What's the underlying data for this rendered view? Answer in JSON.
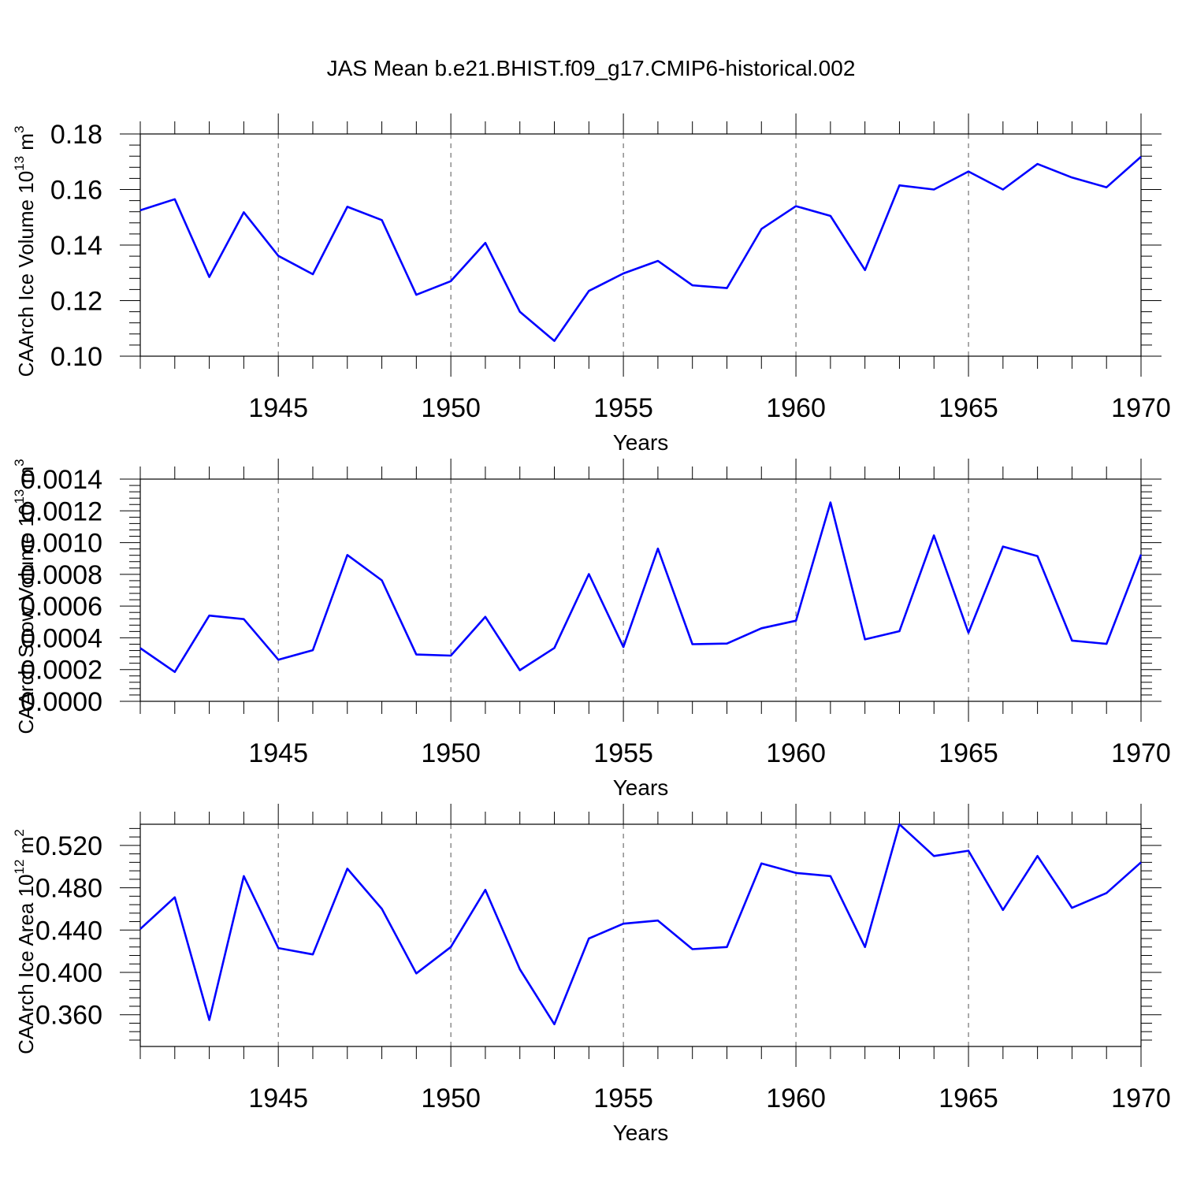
{
  "title": "JAS Mean b.e21.BHIST.f09_g17.CMIP6-historical.002",
  "colors": {
    "line": "#0000ff",
    "axis": "#000000",
    "grid": "#555555"
  },
  "chart_data": [
    {
      "type": "line",
      "title": "JAS Mean b.e21.BHIST.f09_g17.CMIP6-historical.002",
      "xlabel": "Years",
      "ylabel": "CAArch Ice Volume 10",
      "ylabel_sup": "13",
      "ylabel_units": "m",
      "ylabel_units_sup": "3",
      "xlim": [
        1941,
        1970
      ],
      "ylim": [
        0.1,
        0.18
      ],
      "xticks": [
        1945,
        1950,
        1955,
        1960,
        1965,
        1970
      ],
      "xtick_labels": [
        "1945",
        "1950",
        "1955",
        "1960",
        "1965",
        "1970"
      ],
      "yticks": [
        0.1,
        0.12,
        0.14,
        0.16,
        0.18
      ],
      "ytick_labels": [
        "0.10",
        "0.12",
        "0.14",
        "0.16",
        "0.18"
      ],
      "grid_x": true,
      "x": [
        1941,
        1942,
        1943,
        1944,
        1945,
        1946,
        1947,
        1948,
        1949,
        1950,
        1951,
        1952,
        1953,
        1954,
        1955,
        1956,
        1957,
        1958,
        1959,
        1960,
        1961,
        1962,
        1963,
        1964,
        1965,
        1966,
        1967,
        1968,
        1969,
        1970
      ],
      "series": [
        {
          "name": "CAArch Ice Volume",
          "values": [
            0.1525,
            0.1565,
            0.1285,
            0.1518,
            0.1361,
            0.1295,
            0.1538,
            0.149,
            0.1221,
            0.127,
            0.1408,
            0.116,
            0.1055,
            0.1235,
            0.1298,
            0.1343,
            0.1255,
            0.1245,
            0.1458,
            0.154,
            0.1505,
            0.131,
            0.1615,
            0.16,
            0.1665,
            0.16,
            0.1692,
            0.1643,
            0.1608,
            0.1718
          ]
        }
      ]
    },
    {
      "type": "line",
      "xlabel": "Years",
      "ylabel": "CAArch Snow Volume 10",
      "ylabel_sup": "13",
      "ylabel_units": "m",
      "ylabel_units_sup": "3",
      "xlim": [
        1941,
        1970
      ],
      "ylim": [
        0.0,
        0.0014
      ],
      "xticks": [
        1945,
        1950,
        1955,
        1960,
        1965,
        1970
      ],
      "xtick_labels": [
        "1945",
        "1950",
        "1955",
        "1960",
        "1965",
        "1970"
      ],
      "yticks": [
        0.0,
        0.0002,
        0.0004,
        0.0006,
        0.0008,
        0.001,
        0.0012,
        0.0014
      ],
      "ytick_labels": [
        "0.0000",
        "0.0002",
        "0.0004",
        "0.0006",
        "0.0008",
        "0.0010",
        "0.0012",
        "0.0014"
      ],
      "grid_x": true,
      "x": [
        1941,
        1942,
        1943,
        1944,
        1945,
        1946,
        1947,
        1948,
        1949,
        1950,
        1951,
        1952,
        1953,
        1954,
        1955,
        1956,
        1957,
        1958,
        1959,
        1960,
        1961,
        1962,
        1963,
        1964,
        1965,
        1966,
        1967,
        1968,
        1969,
        1970
      ],
      "series": [
        {
          "name": "CAArch Snow Volume",
          "values": [
            0.000335,
            0.000185,
            0.00054,
            0.000518,
            0.000262,
            0.000322,
            0.000922,
            0.000762,
            0.000295,
            0.000288,
            0.000532,
            0.000196,
            0.000336,
            0.000802,
            0.000342,
            0.000962,
            0.00036,
            0.000364,
            0.00046,
            0.000508,
            0.001253,
            0.00039,
            0.000442,
            0.001045,
            0.000432,
            0.000975,
            0.000915,
            0.000383,
            0.000362,
            0.000925
          ]
        }
      ]
    },
    {
      "type": "line",
      "xlabel": "Years",
      "ylabel": "CAArch Ice Area 10",
      "ylabel_sup": "12",
      "ylabel_units": "m",
      "ylabel_units_sup": "2",
      "xlim": [
        1941,
        1970
      ],
      "ylim": [
        0.33,
        0.54
      ],
      "xticks": [
        1945,
        1950,
        1955,
        1960,
        1965,
        1970
      ],
      "xtick_labels": [
        "1945",
        "1950",
        "1955",
        "1960",
        "1965",
        "1970"
      ],
      "yticks": [
        0.36,
        0.4,
        0.44,
        0.48,
        0.52
      ],
      "ytick_labels": [
        "0.360",
        "0.400",
        "0.440",
        "0.480",
        "0.520"
      ],
      "grid_x": true,
      "x": [
        1941,
        1942,
        1943,
        1944,
        1945,
        1946,
        1947,
        1948,
        1949,
        1950,
        1951,
        1952,
        1953,
        1954,
        1955,
        1956,
        1957,
        1958,
        1959,
        1960,
        1961,
        1962,
        1963,
        1964,
        1965,
        1966,
        1967,
        1968,
        1969,
        1970
      ],
      "series": [
        {
          "name": "CAArch Ice Area",
          "values": [
            0.441,
            0.471,
            0.355,
            0.491,
            0.423,
            0.417,
            0.498,
            0.46,
            0.399,
            0.424,
            0.478,
            0.403,
            0.351,
            0.432,
            0.446,
            0.449,
            0.422,
            0.424,
            0.503,
            0.494,
            0.491,
            0.424,
            0.54,
            0.51,
            0.515,
            0.459,
            0.51,
            0.461,
            0.475,
            0.504
          ]
        }
      ]
    }
  ]
}
